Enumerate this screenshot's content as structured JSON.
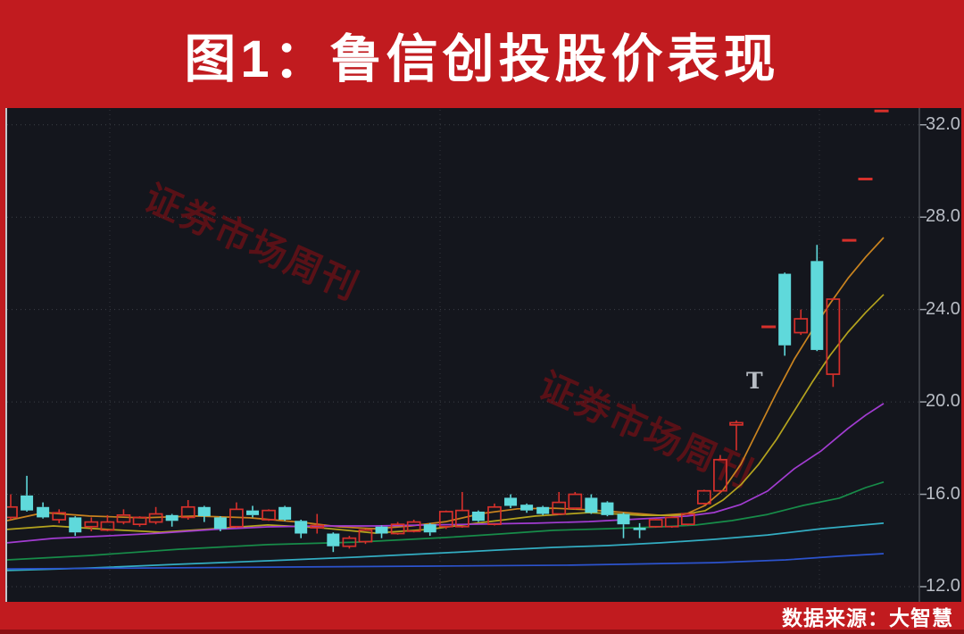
{
  "banner": {
    "title": "图1：鲁信创投股价表现",
    "bg_color": "#c11b1f",
    "text_color": "#ffffff"
  },
  "footer": {
    "label": "数据来源：大智慧",
    "bg_color": "#c11b1f",
    "text_color": "#ffffff"
  },
  "watermarks": [
    {
      "text": "证券市场周刊"
    },
    {
      "text": "证券市场周刊"
    }
  ],
  "marker": {
    "text": "T",
    "index": 46,
    "price": 21.2
  },
  "axis": {
    "tick_labels": [
      "32.0",
      "28.0",
      "24.0",
      "20.0",
      "16.0",
      "12.0"
    ],
    "tick_prices": [
      32,
      28,
      24,
      20,
      16,
      12
    ],
    "label_color": "#b9bdc5"
  },
  "chart_data": {
    "type": "candlestick",
    "title": "图1：鲁信创投股价表现",
    "source": "数据来源：大智慧",
    "ylim": [
      11.3,
      32.7
    ],
    "y_ticks": [
      12,
      16,
      20,
      24,
      28,
      32
    ],
    "grid": "dotted",
    "background": "#14161d",
    "up_color": "#d6302b",
    "down_color": "#5fd9db",
    "note": "candles are [open,high,low,close]; null = day shown only as grey T ex-rights marker; o=h=l=c = one-line limit-up bar",
    "candles": [
      [
        15.0,
        16.0,
        14.9,
        15.45
      ],
      [
        15.95,
        16.8,
        15.25,
        15.3
      ],
      [
        15.45,
        15.65,
        14.95,
        15.0
      ],
      [
        14.9,
        15.35,
        14.75,
        15.2
      ],
      [
        15.0,
        15.05,
        14.2,
        14.35
      ],
      [
        14.6,
        15.0,
        14.4,
        14.8
      ],
      [
        14.45,
        15.1,
        14.4,
        14.8
      ],
      [
        14.8,
        15.35,
        14.7,
        15.1
      ],
      [
        14.7,
        15.05,
        14.6,
        15.0
      ],
      [
        14.8,
        15.45,
        14.7,
        15.15
      ],
      [
        15.1,
        15.15,
        14.6,
        14.85
      ],
      [
        15.0,
        15.75,
        14.9,
        15.45
      ],
      [
        15.45,
        15.5,
        14.8,
        15.05
      ],
      [
        15.0,
        15.05,
        14.4,
        14.5
      ],
      [
        14.6,
        15.65,
        14.55,
        15.35
      ],
      [
        15.3,
        15.5,
        15.0,
        15.1
      ],
      [
        14.9,
        15.35,
        14.85,
        15.3
      ],
      [
        15.45,
        15.5,
        14.85,
        14.9
      ],
      [
        14.85,
        14.9,
        14.1,
        14.3
      ],
      [
        14.55,
        15.15,
        14.3,
        14.65
      ],
      [
        14.3,
        14.35,
        13.5,
        13.75
      ],
      [
        13.75,
        14.2,
        13.65,
        14.1
      ],
      [
        13.95,
        14.5,
        13.85,
        14.45
      ],
      [
        14.6,
        14.65,
        14.1,
        14.3
      ],
      [
        14.3,
        14.8,
        14.25,
        14.7
      ],
      [
        14.4,
        14.9,
        14.35,
        14.8
      ],
      [
        14.7,
        14.75,
        14.2,
        14.35
      ],
      [
        14.6,
        15.3,
        14.5,
        15.25
      ],
      [
        14.6,
        16.1,
        14.55,
        15.3
      ],
      [
        15.25,
        15.3,
        14.8,
        14.85
      ],
      [
        14.7,
        15.6,
        14.65,
        15.45
      ],
      [
        15.85,
        16.0,
        15.4,
        15.5
      ],
      [
        15.55,
        15.6,
        15.2,
        15.3
      ],
      [
        15.45,
        15.5,
        15.1,
        15.15
      ],
      [
        15.15,
        16.1,
        15.1,
        15.65
      ],
      [
        15.4,
        16.1,
        15.35,
        16.0
      ],
      [
        15.85,
        16.0,
        15.15,
        15.2
      ],
      [
        15.65,
        15.7,
        15.05,
        15.1
      ],
      [
        15.15,
        15.2,
        14.1,
        14.7
      ],
      [
        14.55,
        14.75,
        14.1,
        14.45
      ],
      [
        14.6,
        14.95,
        14.55,
        14.9
      ],
      [
        14.6,
        15.05,
        14.55,
        15.0
      ],
      [
        14.7,
        15.2,
        14.65,
        15.15
      ],
      [
        15.6,
        16.2,
        15.55,
        16.15
      ],
      [
        16.15,
        17.7,
        16.05,
        17.5
      ],
      [
        19.1,
        19.2,
        17.9,
        19.1
      ],
      null,
      [
        23.25,
        23.25,
        23.25,
        23.25
      ],
      [
        25.55,
        25.6,
        22.0,
        22.45
      ],
      [
        23.0,
        24.0,
        22.9,
        23.6
      ],
      [
        26.1,
        26.8,
        22.2,
        22.25
      ],
      [
        21.2,
        24.5,
        20.65,
        24.45
      ],
      [
        27.0,
        27.0,
        27.0,
        27.0
      ],
      [
        29.65,
        29.65,
        29.65,
        29.65
      ],
      [
        32.6,
        32.6,
        32.6,
        32.6
      ]
    ],
    "ma_lines": [
      {
        "name": "ma-orange",
        "color": "#c9831f",
        "points": [
          [
            8,
            14.86
          ],
          [
            50,
            15.21
          ],
          [
            100,
            15.06
          ],
          [
            160,
            14.98
          ],
          [
            220,
            15.06
          ],
          [
            280,
            14.98
          ],
          [
            340,
            14.78
          ],
          [
            380,
            14.59
          ],
          [
            420,
            14.51
          ],
          [
            460,
            14.63
          ],
          [
            500,
            14.82
          ],
          [
            540,
            15.17
          ],
          [
            580,
            15.37
          ],
          [
            620,
            15.4
          ],
          [
            660,
            15.33
          ],
          [
            700,
            15.21
          ],
          [
            740,
            15.09
          ],
          [
            770,
            15.17
          ],
          [
            790,
            15.52
          ],
          [
            810,
            16.18
          ],
          [
            830,
            17.3
          ],
          [
            850,
            18.85
          ],
          [
            870,
            20.4
          ],
          [
            890,
            21.86
          ],
          [
            910,
            23.1
          ],
          [
            930,
            24.26
          ],
          [
            950,
            25.35
          ],
          [
            970,
            26.28
          ],
          [
            990,
            27.12
          ]
        ]
      },
      {
        "name": "ma-yellow",
        "color": "#b4a31e",
        "points": [
          [
            8,
            14.48
          ],
          [
            60,
            14.63
          ],
          [
            120,
            14.48
          ],
          [
            180,
            14.36
          ],
          [
            240,
            14.51
          ],
          [
            300,
            14.67
          ],
          [
            360,
            14.55
          ],
          [
            420,
            14.32
          ],
          [
            480,
            14.48
          ],
          [
            540,
            14.78
          ],
          [
            600,
            15.06
          ],
          [
            660,
            15.21
          ],
          [
            720,
            15.09
          ],
          [
            760,
            15.09
          ],
          [
            790,
            15.29
          ],
          [
            810,
            15.75
          ],
          [
            830,
            16.41
          ],
          [
            850,
            17.3
          ],
          [
            870,
            18.38
          ],
          [
            890,
            19.62
          ],
          [
            910,
            20.86
          ],
          [
            930,
            22.02
          ],
          [
            950,
            23.02
          ],
          [
            970,
            23.88
          ],
          [
            990,
            24.65
          ]
        ]
      },
      {
        "name": "ma-magenta",
        "color": "#a23cd1",
        "points": [
          [
            8,
            13.9
          ],
          [
            60,
            14.09
          ],
          [
            120,
            14.2
          ],
          [
            180,
            14.32
          ],
          [
            240,
            14.48
          ],
          [
            300,
            14.59
          ],
          [
            360,
            14.63
          ],
          [
            420,
            14.63
          ],
          [
            480,
            14.67
          ],
          [
            540,
            14.71
          ],
          [
            600,
            14.75
          ],
          [
            660,
            14.82
          ],
          [
            700,
            14.9
          ],
          [
            740,
            14.98
          ],
          [
            770,
            15.06
          ],
          [
            800,
            15.21
          ],
          [
            830,
            15.56
          ],
          [
            860,
            16.14
          ],
          [
            890,
            17.11
          ],
          [
            920,
            17.88
          ],
          [
            950,
            18.85
          ],
          [
            970,
            19.43
          ],
          [
            990,
            19.93
          ]
        ]
      },
      {
        "name": "ma-green",
        "color": "#178c49",
        "points": [
          [
            8,
            13.16
          ],
          [
            100,
            13.35
          ],
          [
            200,
            13.62
          ],
          [
            300,
            13.82
          ],
          [
            400,
            13.93
          ],
          [
            500,
            14.13
          ],
          [
            560,
            14.28
          ],
          [
            620,
            14.44
          ],
          [
            680,
            14.51
          ],
          [
            740,
            14.59
          ],
          [
            780,
            14.67
          ],
          [
            820,
            14.86
          ],
          [
            860,
            15.13
          ],
          [
            900,
            15.52
          ],
          [
            940,
            15.83
          ],
          [
            970,
            16.29
          ],
          [
            990,
            16.53
          ]
        ]
      },
      {
        "name": "ma-cyan",
        "color": "#33adc2",
        "points": [
          [
            8,
            12.7
          ],
          [
            100,
            12.81
          ],
          [
            200,
            12.97
          ],
          [
            300,
            13.12
          ],
          [
            400,
            13.28
          ],
          [
            500,
            13.47
          ],
          [
            560,
            13.59
          ],
          [
            620,
            13.7
          ],
          [
            680,
            13.78
          ],
          [
            740,
            13.9
          ],
          [
            800,
            14.05
          ],
          [
            860,
            14.24
          ],
          [
            920,
            14.51
          ],
          [
            990,
            14.75
          ]
        ]
      },
      {
        "name": "ma-blue",
        "color": "#2c53cd",
        "points": [
          [
            8,
            12.77
          ],
          [
            160,
            12.81
          ],
          [
            320,
            12.85
          ],
          [
            480,
            12.89
          ],
          [
            640,
            12.93
          ],
          [
            800,
            13.04
          ],
          [
            880,
            13.16
          ],
          [
            940,
            13.32
          ],
          [
            990,
            13.43
          ]
        ]
      }
    ]
  }
}
